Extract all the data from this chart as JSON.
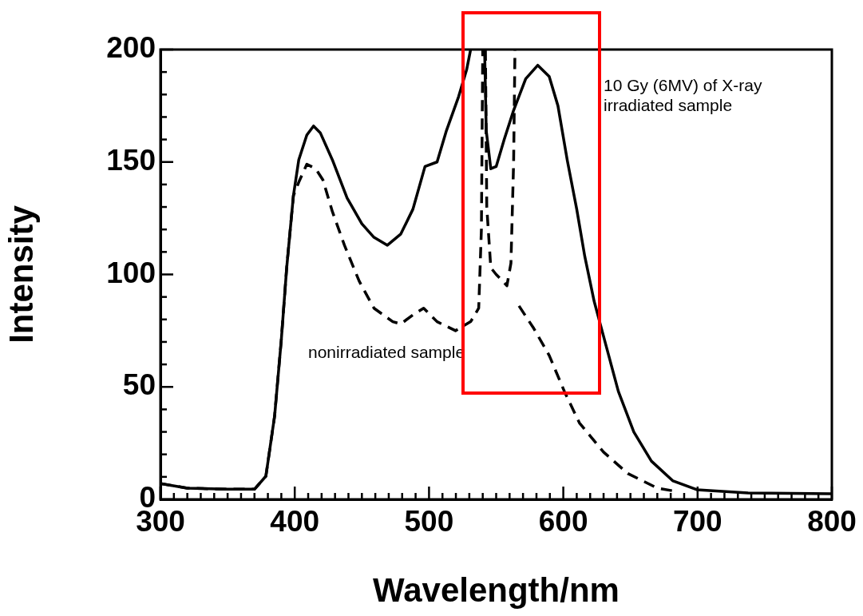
{
  "chart_data": {
    "type": "line",
    "xlabel": "Wavelength/nm",
    "ylabel": "Intensity",
    "xlim": [
      300,
      800
    ],
    "ylim": [
      0,
      200
    ],
    "xticks": [
      300,
      {
        "value": 310,
        "label": null
      },
      {
        "value": 320,
        "label": null
      },
      {
        "value": 330,
        "label": null
      },
      {
        "value": 340,
        "label": null
      },
      {
        "value": 350,
        "label": null
      },
      {
        "value": 360,
        "label": null
      },
      {
        "value": 370,
        "label": null
      },
      {
        "value": 380,
        "label": null
      },
      {
        "value": 390,
        "label": null
      },
      400,
      {
        "value": 410,
        "label": null
      },
      {
        "value": 420,
        "label": null
      },
      {
        "value": 430,
        "label": null
      },
      {
        "value": 440,
        "label": null
      },
      {
        "value": 450,
        "label": null
      },
      {
        "value": 460,
        "label": null
      },
      {
        "value": 470,
        "label": null
      },
      {
        "value": 480,
        "label": null
      },
      {
        "value": 490,
        "label": null
      },
      500,
      {
        "value": 510,
        "label": null
      },
      {
        "value": 520,
        "label": null
      },
      {
        "value": 530,
        "label": null
      },
      {
        "value": 540,
        "label": null
      },
      {
        "value": 550,
        "label": null
      },
      {
        "value": 560,
        "label": null
      },
      {
        "value": 570,
        "label": null
      },
      {
        "value": 580,
        "label": null
      },
      {
        "value": 590,
        "label": null
      },
      600,
      {
        "value": 610,
        "label": null
      },
      {
        "value": 620,
        "label": null
      },
      {
        "value": 630,
        "label": null
      },
      {
        "value": 640,
        "label": null
      },
      {
        "value": 650,
        "label": null
      },
      {
        "value": 660,
        "label": null
      },
      {
        "value": 670,
        "label": null
      },
      {
        "value": 680,
        "label": null
      },
      {
        "value": 690,
        "label": null
      },
      700,
      {
        "value": 710,
        "label": null
      },
      {
        "value": 720,
        "label": null
      },
      {
        "value": 730,
        "label": null
      },
      {
        "value": 740,
        "label": null
      },
      {
        "value": 750,
        "label": null
      },
      {
        "value": 760,
        "label": null
      },
      {
        "value": 770,
        "label": null
      },
      {
        "value": 780,
        "label": null
      },
      {
        "value": 790,
        "label": null
      },
      800
    ],
    "yticks": [
      0,
      {
        "value": 10,
        "label": null
      },
      {
        "value": 20,
        "label": null
      },
      {
        "value": 30,
        "label": null
      },
      {
        "value": 40,
        "label": null
      },
      50,
      {
        "value": 60,
        "label": null
      },
      {
        "value": 70,
        "label": null
      },
      {
        "value": 80,
        "label": null
      },
      {
        "value": 90,
        "label": null
      },
      100,
      {
        "value": 110,
        "label": null
      },
      {
        "value": 120,
        "label": null
      },
      {
        "value": 130,
        "label": null
      },
      {
        "value": 140,
        "label": null
      },
      150,
      {
        "value": 160,
        "label": null
      },
      {
        "value": 170,
        "label": null
      },
      {
        "value": 180,
        "label": null
      },
      {
        "value": 190,
        "label": null
      },
      200
    ],
    "grid": false,
    "legend": false,
    "marker": "none",
    "series": [
      {
        "name": "nonirradiated sample",
        "color": "#000000",
        "line_style": "dashed",
        "x": [
          300,
          320,
          350,
          370,
          378.5,
          385,
          390,
          394,
          399,
          403,
          409,
          415.6,
          421,
          428,
          437,
          448,
          459,
          473,
          479,
          488,
          496,
          506,
          519.7,
          531,
          537,
          539,
          540,
          541,
          542,
          543,
          546,
          550,
          555,
          558,
          561,
          563,
          564,
          565,
          567,
          578,
          589.5,
          600.8,
          612,
          630,
          648,
          670,
          683.5
        ],
        "values": [
          7,
          5,
          4.5,
          4.5,
          10.3,
          37,
          71,
          103,
          135,
          141,
          149,
          147,
          142,
          128,
          113,
          97,
          85,
          79,
          78,
          82,
          85,
          79,
          75,
          79,
          85,
          120,
          200,
          null,
          200,
          130,
          103,
          100,
          97,
          95,
          105,
          150,
          200,
          null,
          86,
          76,
          64,
          48,
          34,
          21,
          11.5,
          5,
          3.6
        ]
      },
      {
        "name": "10 Gy (6MV) of X-ray\nirradiated sample",
        "color": "#000000",
        "line_style": "solid",
        "x": [
          300,
          320,
          350,
          370,
          378.5,
          385,
          390,
          394,
          399,
          403,
          409,
          414,
          419,
          428,
          439,
          450,
          459,
          469,
          479,
          488,
          497,
          506,
          513,
          522,
          528,
          531,
          536,
          541.4,
          542.6,
          546,
          550,
          556,
          563,
          572,
          581,
          589.5,
          596,
          603,
          610,
          616,
          623,
          632,
          641,
          652.5,
          665.6,
          681.7,
          699.5,
          737.6,
          800
        ],
        "values": [
          7,
          5,
          4.5,
          4.5,
          10.3,
          37,
          71,
          103,
          135,
          151,
          162,
          166,
          163,
          151,
          134,
          122.5,
          116.5,
          113,
          118,
          129,
          148,
          150,
          164,
          179,
          191,
          200,
          null,
          200,
          164,
          147,
          148,
          160,
          173,
          187,
          193,
          188,
          175,
          150.6,
          129,
          108,
          88,
          68,
          48,
          30,
          17,
          8.2,
          4.3,
          2.8,
          2.5
        ]
      }
    ]
  }
}
